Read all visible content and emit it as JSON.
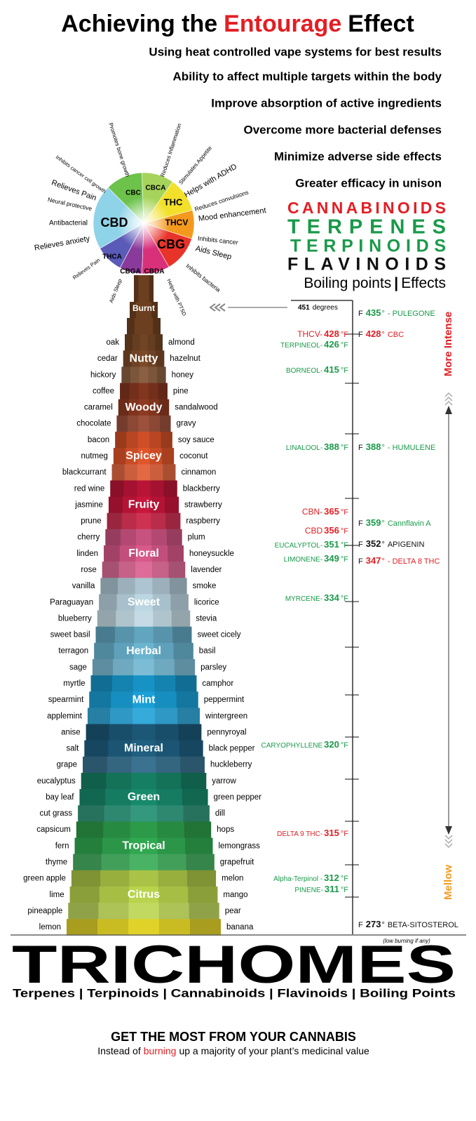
{
  "header": {
    "title": {
      "before": "Achieving the",
      "highlight": "Entourage",
      "after": "Effect"
    },
    "benefits": [
      "Using heat controlled vape systems for best results",
      "Ability to affect multiple targets within the body",
      "Improve absorption of active ingredients",
      "Overcome more bacterial defenses",
      "Minimize adverse side effects",
      "Greater efficacy in unison"
    ]
  },
  "legend": {
    "cannabinoids": "CANNABINOIDS",
    "terpenes": "TERPENES",
    "terpinoids": "TERPINOIDS",
    "flavinoids": "FLAVINOIDS",
    "boiling_points": "Boiling points",
    "separator": "|",
    "effects": "Effects"
  },
  "wheel": {
    "segments": [
      "CBD",
      "CBC",
      "CBCA",
      "THC",
      "THCV",
      "CBG",
      "CBDA",
      "CBGA",
      "THCA"
    ],
    "effects": [
      "Promotes bone growth",
      "Reduces Inflammation",
      "Stimulates Appetite",
      "Helps with ADHD",
      "Reduces convulsions",
      "Mood enhancement",
      "Inhibits cancer",
      "Aids Sleep",
      "Inhibits bacteria",
      "Helps with PTSD",
      "Aids Sleep",
      "Relieves Pain",
      "Relieves anxiety",
      "Antibacterial",
      "Neural protective",
      "Relieves Pain",
      "Inhibits cancer cell growth"
    ]
  },
  "tower": {
    "top": "Burnt",
    "categories": [
      "Nutty",
      "Woody",
      "Spicey",
      "Fruity",
      "Floral",
      "Sweet",
      "Herbal",
      "Mint",
      "Mineral",
      "Green",
      "Tropical",
      "Citrus"
    ],
    "rows": [
      [
        "oak",
        "almond"
      ],
      [
        "cedar",
        "hazelnut"
      ],
      [
        "hickory",
        "honey"
      ],
      [
        "coffee",
        "pine"
      ],
      [
        "caramel",
        "sandalwood"
      ],
      [
        "chocolate",
        "gravy"
      ],
      [
        "bacon",
        "soy sauce"
      ],
      [
        "nutmeg",
        "coconut"
      ],
      [
        "blackcurrant",
        "cinnamon"
      ],
      [
        "red wine",
        "blackberry"
      ],
      [
        "jasmine",
        "strawberry"
      ],
      [
        "prune",
        "raspberry"
      ],
      [
        "cherry",
        "plum"
      ],
      [
        "linden",
        "honeysuckle"
      ],
      [
        "rose",
        "lavender"
      ],
      [
        "vanilla",
        "smoke"
      ],
      [
        "Paraguayan",
        "licorice"
      ],
      [
        "blueberry",
        "stevia"
      ],
      [
        "sweet basil",
        "sweet cicely"
      ],
      [
        "terragon",
        "basil"
      ],
      [
        "sage",
        "parsley"
      ],
      [
        "myrtle",
        "camphor"
      ],
      [
        "spearmint",
        "peppermint"
      ],
      [
        "applemint",
        "wintergreen"
      ],
      [
        "anise",
        "pennyroyal"
      ],
      [
        "salt",
        "black pepper"
      ],
      [
        "grape",
        "huckleberry"
      ],
      [
        "eucalyptus",
        "yarrow"
      ],
      [
        "bay leaf",
        "green pepper"
      ],
      [
        "cut grass",
        "dill"
      ],
      [
        "capsicum",
        "hops"
      ],
      [
        "fern",
        "lemongrass"
      ],
      [
        "thyme",
        "grapefruit"
      ],
      [
        "green apple",
        "melon"
      ],
      [
        "lime",
        "mango"
      ],
      [
        "pineapple",
        "pear"
      ],
      [
        "lemon",
        "banana"
      ]
    ]
  },
  "scale": {
    "top_marker": {
      "value": 451,
      "unit": "degrees"
    },
    "left": [
      {
        "name": "THCV-",
        "temp": 428,
        "unit": "°F",
        "color": "#e31e24"
      },
      {
        "name": "TERPINEOL-",
        "temp": 426,
        "unit": "°F",
        "color": "#1a9a4a"
      },
      {
        "name": "BORNEOL-",
        "temp": 415,
        "unit": "°F",
        "color": "#1a9a4a"
      },
      {
        "name": "LINALOOL-",
        "temp": 388,
        "unit": "°F",
        "color": "#1a9a4a"
      },
      {
        "name": "CBN-",
        "temp": 365,
        "unit": "°F",
        "color": "#e31e24"
      },
      {
        "name": "CBD",
        "temp": 356,
        "unit": "°F",
        "color": "#e31e24"
      },
      {
        "name": "EUCALYPTOL-",
        "temp": 351,
        "unit": "°F",
        "color": "#1a9a4a"
      },
      {
        "name": "LIMONENE-",
        "temp": 349,
        "unit": "°F",
        "color": "#1a9a4a"
      },
      {
        "name": "MYRCENE-",
        "temp": 334,
        "unit": "°F",
        "color": "#1a9a4a"
      },
      {
        "name": "CARYOPHYLLENE",
        "temp": 320,
        "unit": "°F",
        "color": "#1a9a4a"
      },
      {
        "name": "DELTA 9 THC-",
        "temp": 315,
        "unit": "°F",
        "color": "#e31e24"
      },
      {
        "name": "Alpha-Terpinol -",
        "temp": 312,
        "unit": "°F",
        "color": "#1a9a4a"
      },
      {
        "name": "PINENE-",
        "temp": 311,
        "unit": "°F",
        "color": "#1a9a4a"
      }
    ],
    "right": [
      {
        "prefix": "F",
        "temp": 435,
        "unit": "°",
        "name": "- PULEGONE",
        "color": "#1a9a4a"
      },
      {
        "prefix": "F",
        "temp": 428,
        "unit": "°",
        "name": "CBC",
        "color": "#e31e24"
      },
      {
        "prefix": "F",
        "temp": 388,
        "unit": "°",
        "name": "- HUMULENE",
        "color": "#1a9a4a"
      },
      {
        "prefix": "F",
        "temp": 359,
        "unit": "°",
        "name": "Cannflavin A",
        "color": "#1a9a4a"
      },
      {
        "prefix": "F",
        "temp": 352,
        "unit": "°",
        "name": "APIGENIN",
        "color": "#111111"
      },
      {
        "prefix": "F",
        "temp": 347,
        "unit": "°",
        "name": "- DELTA 8 THC",
        "color": "#e31e24"
      },
      {
        "prefix": "F",
        "temp": 273,
        "unit": "°",
        "name": "BETA-SITOSTEROL",
        "color": "#111111"
      }
    ],
    "more_intense": "More Intense",
    "mellow": "Mellow",
    "note": "(low burning if any)"
  },
  "footer": {
    "title": "TRICHOMES",
    "subtitle": "Terpenes | Terpinoids | Cannabinoids | Flavinoids | Boiling Points",
    "cta": "GET THE MOST FROM YOUR CANNABIS",
    "tagline": {
      "before": "Instead of",
      "highlight": "burning",
      "after": "up a majority of your plant’s medicinal value"
    }
  }
}
